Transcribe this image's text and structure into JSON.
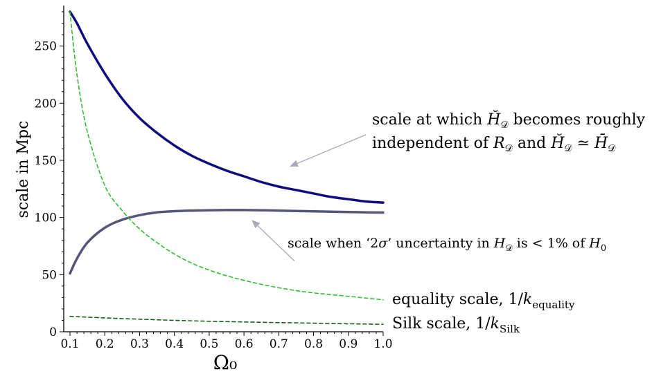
{
  "chart_data": {
    "type": "line",
    "xlabel": "Ω₀",
    "ylabel": "scale in Mpc",
    "xlim": [
      0.1,
      1.0
    ],
    "ylim": [
      0,
      280
    ],
    "x_ticks": [
      "0.1",
      "0.2",
      "0.3",
      "0.4",
      "0.5",
      "0.6",
      "0.7",
      "0.8",
      "0.9",
      "1.0"
    ],
    "x_tick_values": [
      0.1,
      0.2,
      0.3,
      0.4,
      0.5,
      0.6,
      0.7,
      0.8,
      0.9,
      1.0
    ],
    "y_ticks": [
      "0",
      "50",
      "100",
      "150",
      "200",
      "250"
    ],
    "y_tick_values": [
      0,
      50,
      100,
      150,
      200,
      250
    ],
    "x": [
      0.1,
      0.12,
      0.15,
      0.2,
      0.25,
      0.3,
      0.35,
      0.4,
      0.45,
      0.5,
      0.55,
      0.6,
      0.65,
      0.7,
      0.75,
      0.8,
      0.85,
      0.9,
      0.95,
      1.0
    ],
    "series": [
      {
        "color": "#0d0d80",
        "style": "solid",
        "width": 3.5,
        "values": [
          280,
          270,
          252,
          226,
          204,
          187,
          174,
          163,
          154,
          147,
          141,
          136,
          131,
          127,
          124,
          121,
          118,
          116,
          114,
          113
        ]
      },
      {
        "color": "#55557a",
        "style": "solid",
        "width": 3.5,
        "values": [
          51,
          64,
          78,
          91,
          98,
          102,
          104.5,
          105.5,
          106,
          106.3,
          106.5,
          106.5,
          106.3,
          106,
          105.7,
          105.4,
          105.1,
          104.8,
          104.5,
          104.3
        ]
      },
      {
        "color": "#33bb33",
        "style": "dashed",
        "width": 1.6,
        "values": [
          280,
          225,
          175,
          128,
          106,
          90,
          78,
          68,
          60,
          54,
          49,
          45,
          41.5,
          38.5,
          36,
          34,
          32.5,
          31,
          29.5,
          28
        ]
      },
      {
        "color": "#116611",
        "style": "dashed",
        "width": 1.6,
        "values": [
          13.5,
          13.2,
          12.8,
          12.1,
          11.5,
          11,
          10.5,
          10,
          9.6,
          9.2,
          8.9,
          8.6,
          8.3,
          8,
          7.8,
          7.5,
          7.2,
          7,
          6.8,
          6.5
        ]
      }
    ],
    "annotations": [
      {
        "line1_parts": [
          "scale at which ",
          "H̆",
          "𝒟",
          " becomes roughly"
        ],
        "line2_parts": [
          "independent of ",
          "R",
          "𝒟",
          " and ",
          "H̆",
          "𝒟",
          " ≃ ",
          "H̄",
          "𝒟"
        ],
        "arrow_from": [
          0.905,
          200
        ],
        "arrow_to": [
          0.735,
          145
        ]
      },
      {
        "text_parts": [
          "scale when ‘2",
          "σ",
          "’ uncertainty in ",
          "H",
          "𝒟",
          " is < 1% of ",
          "H",
          "0"
        ],
        "arrow_from": [
          0.745,
          62
        ],
        "arrow_to": [
          0.625,
          97
        ]
      },
      {
        "text_parts": [
          "equality scale, 1/",
          "k",
          "equality"
        ]
      },
      {
        "text_parts": [
          "Silk scale, 1/",
          "k",
          "Silk"
        ]
      }
    ]
  }
}
